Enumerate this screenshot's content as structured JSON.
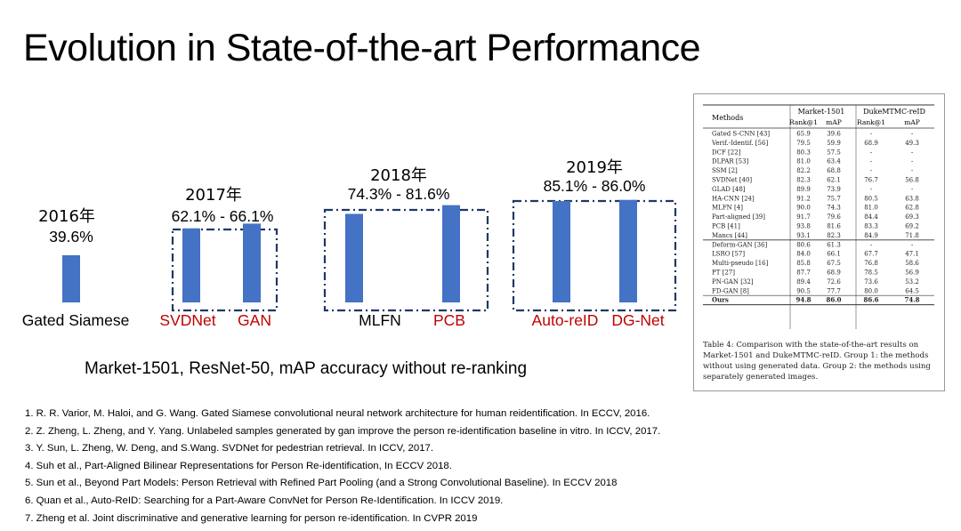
{
  "slide": {
    "title": "Evolution in State-of-the-art Performance",
    "subtitle": "Market-1501, ResNet-50, mAP accuracy without re-ranking"
  },
  "chart_data": {
    "type": "bar",
    "title": "",
    "xlabel": "",
    "ylabel": "",
    "colors": {
      "bar": "#4472C4",
      "group_box": "#1F3864",
      "highlight_label": "#C00000"
    },
    "groups": [
      {
        "year": "2016年",
        "range": "39.6%",
        "methods": [
          {
            "name": "Gated Siamese",
            "value": 39.6,
            "highlight": false
          }
        ]
      },
      {
        "year": "2017年",
        "range": "62.1% - 66.1%",
        "methods": [
          {
            "name": "SVDNet",
            "value": 62.1,
            "highlight": true
          },
          {
            "name": "GAN",
            "value": 66.1,
            "highlight": true
          }
        ]
      },
      {
        "year": "2018年",
        "range": "74.3% - 81.6%",
        "methods": [
          {
            "name": "MLFN",
            "value": 74.3,
            "highlight": false
          },
          {
            "name": "PCB",
            "value": 81.6,
            "highlight": true
          }
        ]
      },
      {
        "year": "2019年",
        "range": "85.1% - 86.0%",
        "methods": [
          {
            "name": "Auto-reID",
            "value": 85.1,
            "highlight": true
          },
          {
            "name": "DG-Net",
            "value": 86.0,
            "highlight": true
          }
        ]
      }
    ]
  },
  "comparison_table": {
    "headers": {
      "methods": "Methods",
      "dataset1": "Market-1501",
      "dataset2": "DukeMTMC-reID",
      "rank1": "Rank@1",
      "map": "mAP"
    },
    "group1": [
      [
        "Gated S-CNN [43]",
        "65.9",
        "39.6",
        "-",
        "-"
      ],
      [
        "Verif.-Identif. [56]",
        "79.5",
        "59.9",
        "68.9",
        "49.3"
      ],
      [
        "DCF [22]",
        "80.3",
        "57.5",
        "-",
        "-"
      ],
      [
        "DLPAR [53]",
        "81.0",
        "63.4",
        "-",
        "-"
      ],
      [
        "SSM [2]",
        "82.2",
        "68.8",
        "-",
        "-"
      ],
      [
        "SVDNet [40]",
        "82.3",
        "62.1",
        "76.7",
        "56.8"
      ],
      [
        "GLAD [48]",
        "89.9",
        "73.9",
        "-",
        "-"
      ],
      [
        "HA-CNN [24]",
        "91.2",
        "75.7",
        "80.5",
        "63.8"
      ],
      [
        "MLFN [4]",
        "90.0",
        "74.3",
        "81.0",
        "62.8"
      ],
      [
        "Part-aligned [39]",
        "91.7",
        "79.6",
        "84.4",
        "69.3"
      ],
      [
        "PCB [41]",
        "93.8",
        "81.6",
        "83.3",
        "69.2"
      ],
      [
        "Mancs [44]",
        "93.1",
        "82.3",
        "84.9",
        "71.8"
      ]
    ],
    "group2": [
      [
        "Deform-GAN [36]",
        "80.6",
        "61.3",
        "-",
        "-"
      ],
      [
        "LSRO [57]",
        "84.0",
        "66.1",
        "67.7",
        "47.1"
      ],
      [
        "Multi-pseudo [16]",
        "85.8",
        "67.5",
        "76.8",
        "58.6"
      ],
      [
        "PT [27]",
        "87.7",
        "68.9",
        "78.5",
        "56.9"
      ],
      [
        "PN-GAN [32]",
        "89.4",
        "72.6",
        "73.6",
        "53.2"
      ],
      [
        "FD-GAN [8]",
        "90.5",
        "77.7",
        "80.0",
        "64.5"
      ],
      [
        "Ours",
        "94.8",
        "86.0",
        "86.6",
        "74.8"
      ]
    ],
    "caption": "Table 4: Comparison with the state-of-the-art results on Market-1501 and DukeMTMC-reID. Group 1: the methods without using generated data. Group 2: the methods using separately generated images."
  },
  "references": [
    "1. R. R. Varior, M. Haloi, and G. Wang. Gated Siamese convolutional neural network architecture for human reidentification. In ECCV, 2016.",
    "2. Z. Zheng, L. Zheng, and Y. Yang. Unlabeled samples generated by gan improve the person re-identification baseline in vitro. In ICCV, 2017.",
    "3. Y. Sun, L. Zheng, W. Deng, and S.Wang. SVDNet for pedestrian retrieval. In ICCV, 2017.",
    "4. Suh et al., Part-Aligned Bilinear Representations for Person Re-identification, In ECCV 2018.",
    "5. Sun et al., Beyond Part Models: Person Retrieval with Refined Part Pooling (and a Strong Convolutional Baseline). In ECCV 2018",
    "6. Quan et al., Auto-ReID: Searching for a Part-Aware ConvNet for Person Re-Identification. In  ICCV 2019.",
    "7. Zheng et al. Joint discriminative and generative learning for person re-identification. In CVPR 2019"
  ]
}
